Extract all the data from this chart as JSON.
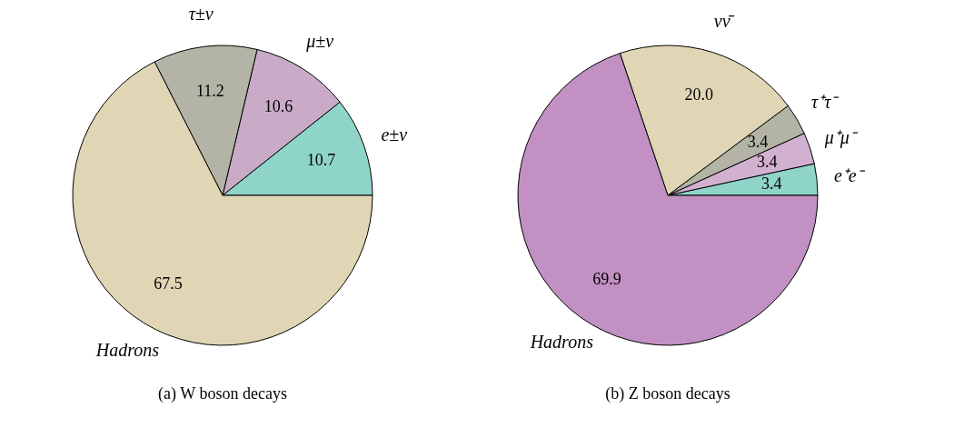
{
  "chart_data": [
    {
      "type": "pie",
      "title": "(a)  W boson decays",
      "categories": [
        "e±ν",
        "μ±ν",
        "τ±ν",
        "Hadrons"
      ],
      "values": [
        10.7,
        10.6,
        11.2,
        67.5
      ],
      "value_labels": [
        "10.7",
        "10.6",
        "11.2",
        "67.5"
      ],
      "colors": [
        "#8fd4c8",
        "#c9abc8",
        "#b3b3a6",
        "#e0d5b4"
      ],
      "legend": false
    },
    {
      "type": "pie",
      "title": "(b)  Z boson decays",
      "categories": [
        "e⁺e⁻",
        "μ⁺μ⁻",
        "τ⁺τ⁻",
        "νν̄",
        "Hadrons"
      ],
      "values": [
        3.4,
        3.4,
        3.4,
        20.0,
        69.9
      ],
      "value_labels": [
        "3.4",
        "3.4",
        "3.4",
        "20.0",
        "69.9"
      ],
      "colors": [
        "#8fd4c8",
        "#d1b0d0",
        "#b3b3a6",
        "#e0d5b4",
        "#c290c2"
      ],
      "legend": false
    }
  ]
}
